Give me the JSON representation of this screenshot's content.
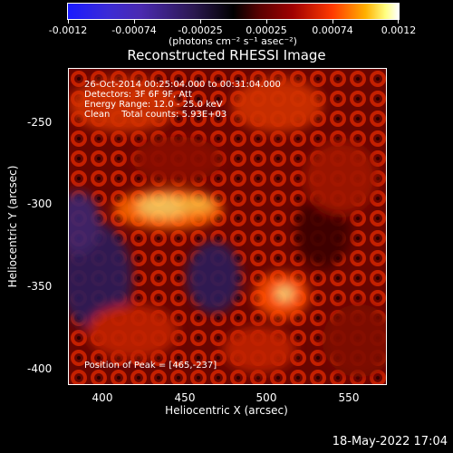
{
  "colorbar": {
    "ticks": [
      "-0.0012",
      "-0.00074",
      "-0.00025",
      "0.00025",
      "0.00074",
      "0.0012"
    ],
    "unit_label": "(photons cm⁻² s⁻¹ asec⁻²)"
  },
  "title": "Reconstructed RHESSI Image",
  "annotations": {
    "line1": "26-Oct-2014 00:25:04.000 to 00:31:04.000",
    "line2": "Detectors: 3F 6F 9F, Att",
    "line3": "Energy Range: 12.0 - 25.0 keV",
    "line4": "Clean    Total counts: 5.93E+03",
    "peak": "Position of Peak = [465,-237]"
  },
  "axes": {
    "x_label": "Heliocentric X (arcsec)",
    "y_label": "Heliocentric Y (arcsec)",
    "x_ticks": [
      "400",
      "450",
      "500",
      "550"
    ],
    "y_ticks": [
      "-250",
      "-300",
      "-350",
      "-400"
    ]
  },
  "footer_date": "18-May-2022 17:04",
  "colors": {
    "background": "#000000",
    "foreground": "#ffffff"
  }
}
